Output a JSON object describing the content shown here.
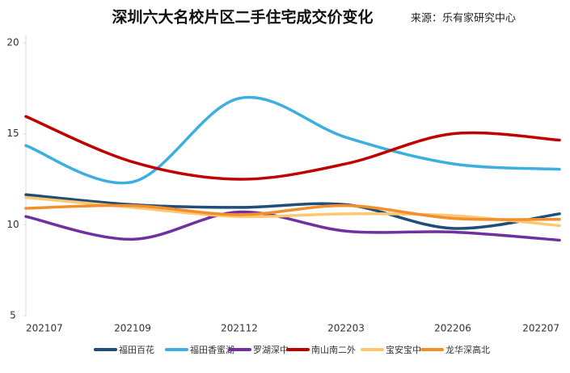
{
  "chart_data": {
    "type": "line",
    "title": "深圳六大名校片区二手住宅成交价变化",
    "subtitle": "来源：乐有家研究中心",
    "categories": [
      "202107",
      "202109",
      "202112",
      "202203",
      "202206",
      "202207"
    ],
    "series": [
      {
        "name": "福田百花",
        "color": "#1f4e79",
        "values": [
          11.65,
          11.1,
          10.95,
          11.1,
          9.8,
          10.6
        ]
      },
      {
        "name": "福田香蜜湖",
        "color": "#3daee0",
        "values": [
          14.35,
          12.35,
          16.95,
          14.8,
          13.35,
          13.05
        ]
      },
      {
        "name": "罗湖深中",
        "color": "#7030a0",
        "values": [
          10.45,
          9.2,
          10.7,
          9.65,
          9.6,
          9.15
        ]
      },
      {
        "name": "南山南二外",
        "color": "#c00000",
        "values": [
          15.95,
          13.45,
          12.5,
          13.35,
          15.0,
          14.65
        ]
      },
      {
        "name": "宝安宝中",
        "color": "#ffc870",
        "values": [
          11.5,
          10.95,
          10.45,
          10.6,
          10.5,
          9.95
        ]
      },
      {
        "name": "龙华深高北",
        "color": "#f28e2b",
        "values": [
          10.9,
          11.05,
          10.55,
          11.05,
          10.35,
          10.3
        ]
      }
    ],
    "ylim": [
      5,
      20
    ],
    "yticks": [
      5,
      10,
      15,
      20
    ],
    "grid": false,
    "legend": "bottom"
  }
}
